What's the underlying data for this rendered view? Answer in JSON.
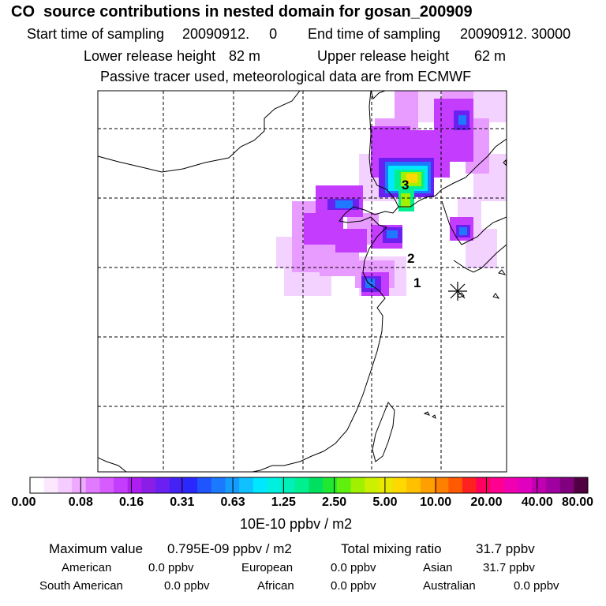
{
  "header": {
    "title": "CO  source contributions in nested domain for gosan_200909",
    "start_label": "Start time of sampling",
    "start_value": "20090912.     0",
    "end_label": "End time of sampling",
    "end_value": "20090912. 30000",
    "lower_label": "Lower release height",
    "lower_value": "82 m",
    "upper_label": "Upper release height",
    "upper_value": "62 m",
    "tracer_note": "Passive tracer used, meteorological data are from ECMWF"
  },
  "map": {
    "station_labels": [
      "1",
      "2",
      "3"
    ],
    "receptor_marker": "asterisk-icon"
  },
  "colorbar": {
    "unit": "10E-10 ppbv / m2",
    "ticks": [
      "0.00",
      "0.08",
      "0.16",
      "0.31",
      "0.63",
      "1.25",
      "2.50",
      "5.00",
      "10.00",
      "20.00",
      "40.00",
      "80.00"
    ],
    "colors": [
      "#ffffff",
      "#fbe8ff",
      "#f5ccff",
      "#efaaff",
      "#e07bff",
      "#d65cff",
      "#c43dff",
      "#b01df0",
      "#8a1ee6",
      "#6a20f0",
      "#4422f5",
      "#2828ff",
      "#1f55ff",
      "#1a79ff",
      "#149cff",
      "#10c0ff",
      "#00e8ff",
      "#00f0e0",
      "#00f0b8",
      "#00f090",
      "#00e060",
      "#20e830",
      "#60f010",
      "#a0f000",
      "#ccf000",
      "#e8e800",
      "#ffd800",
      "#ffc000",
      "#ffa000",
      "#ff8000",
      "#ff5a00",
      "#ff2020",
      "#ff0060",
      "#ff0090",
      "#f000b0",
      "#e000c0",
      "#c000b0",
      "#a000a0",
      "#800080",
      "#500040"
    ]
  },
  "summary": {
    "max_label": "Maximum value",
    "max_value": "0.795E-09 ppbv / m2",
    "total_label": "Total mixing ratio",
    "total_value": "31.7 ppbv",
    "regions": [
      {
        "name": "American",
        "value": "0.0 ppbv"
      },
      {
        "name": "European",
        "value": "0.0 ppbv"
      },
      {
        "name": "Asian",
        "value": "31.7 ppbv"
      },
      {
        "name": "South American",
        "value": "0.0 ppbv"
      },
      {
        "name": "African",
        "value": "0.0 ppbv"
      },
      {
        "name": "Australian",
        "value": "0.0 ppbv"
      }
    ]
  }
}
